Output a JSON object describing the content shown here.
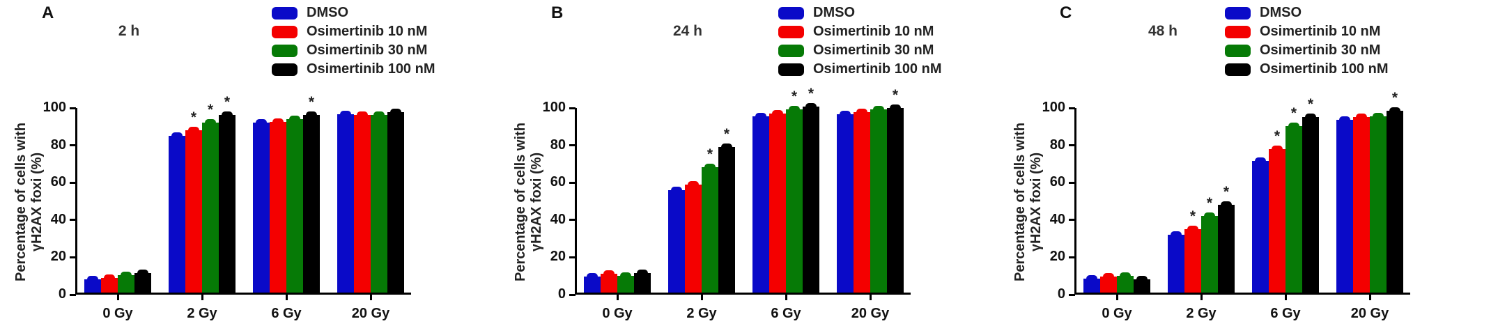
{
  "figure": {
    "ylabel_line1": "Percentage of cells with",
    "ylabel_line2": "γH2AX foxi (%)",
    "significance_marker": "*"
  },
  "legend": {
    "items": [
      {
        "label": "DMSO",
        "color": "#0a0ac8"
      },
      {
        "label": "Osimertinib 10 nM",
        "color": "#f40000"
      },
      {
        "label": "Osimertinib 30 nM",
        "color": "#067a06"
      },
      {
        "label": "Osimertinib 100 nM",
        "color": "#000000"
      }
    ]
  },
  "chart_data": [
    {
      "type": "bar",
      "panel": "A",
      "title": "2 h",
      "xlabel": "",
      "ylabel": "Percentage of cells with γH2AX foxi (%)",
      "ylim": [
        0,
        100
      ],
      "yticks": [
        0,
        20,
        40,
        60,
        80,
        100
      ],
      "grid": false,
      "legend_position": "top-right",
      "categories": [
        "0 Gy",
        "2 Gy",
        "6 Gy",
        "20 Gy"
      ],
      "series": [
        {
          "name": "DMSO",
          "color": "#0a0ac8",
          "values": [
            7,
            84,
            91,
            95.5
          ],
          "sig": [
            false,
            false,
            false,
            false
          ]
        },
        {
          "name": "Osimertinib 10 nM",
          "color": "#f40000",
          "values": [
            8,
            87,
            91.5,
            95
          ],
          "sig": [
            false,
            true,
            false,
            false
          ]
        },
        {
          "name": "Osimertinib 30 nM",
          "color": "#067a06",
          "values": [
            9.5,
            91,
            93,
            95
          ],
          "sig": [
            false,
            true,
            false,
            false
          ]
        },
        {
          "name": "Osimertinib 100 nM",
          "color": "#000000",
          "values": [
            10.5,
            95,
            95,
            96.5
          ],
          "sig": [
            false,
            true,
            true,
            false
          ]
        }
      ]
    },
    {
      "type": "bar",
      "panel": "B",
      "title": "24 h",
      "xlabel": "",
      "ylabel": "Percentage of cells with γH2AX foxi (%)",
      "ylim": [
        0,
        100
      ],
      "yticks": [
        0,
        20,
        40,
        60,
        80,
        100
      ],
      "grid": false,
      "legend_position": "top-right",
      "categories": [
        "0 Gy",
        "2 Gy",
        "6 Gy",
        "20 Gy"
      ],
      "series": [
        {
          "name": "DMSO",
          "color": "#0a0ac8",
          "values": [
            8.5,
            55,
            94.5,
            95.5
          ],
          "sig": [
            false,
            false,
            false,
            false
          ]
        },
        {
          "name": "Osimertinib 10 nM",
          "color": "#f40000",
          "values": [
            10,
            58,
            96,
            96.5
          ],
          "sig": [
            false,
            false,
            false,
            false
          ]
        },
        {
          "name": "Osimertinib 30 nM",
          "color": "#067a06",
          "values": [
            9,
            67,
            98,
            98
          ],
          "sig": [
            false,
            true,
            true,
            false
          ]
        },
        {
          "name": "Osimertinib 100 nM",
          "color": "#000000",
          "values": [
            10.5,
            78,
            99.5,
            99
          ],
          "sig": [
            false,
            true,
            true,
            true
          ]
        }
      ]
    },
    {
      "type": "bar",
      "panel": "C",
      "title": "48 h",
      "xlabel": "",
      "ylabel": "Percentage of cells with γH2AX foxi (%)",
      "ylim": [
        0,
        100
      ],
      "yticks": [
        0,
        20,
        40,
        60,
        80,
        100
      ],
      "grid": false,
      "legend_position": "top-right",
      "categories": [
        "0 Gy",
        "2 Gy",
        "6 Gy",
        "20 Gy"
      ],
      "series": [
        {
          "name": "DMSO",
          "color": "#0a0ac8",
          "values": [
            7.5,
            31,
            70.5,
            92.5
          ],
          "sig": [
            false,
            false,
            false,
            false
          ]
        },
        {
          "name": "Osimertinib 10 nM",
          "color": "#f40000",
          "values": [
            8.5,
            34,
            77,
            94
          ],
          "sig": [
            false,
            true,
            true,
            false
          ]
        },
        {
          "name": "Osimertinib 30 nM",
          "color": "#067a06",
          "values": [
            9,
            41,
            89,
            94.5
          ],
          "sig": [
            false,
            true,
            true,
            false
          ]
        },
        {
          "name": "Osimertinib 100 nM",
          "color": "#000000",
          "values": [
            7,
            47,
            94,
            97.5
          ],
          "sig": [
            false,
            true,
            true,
            true
          ]
        }
      ]
    }
  ]
}
